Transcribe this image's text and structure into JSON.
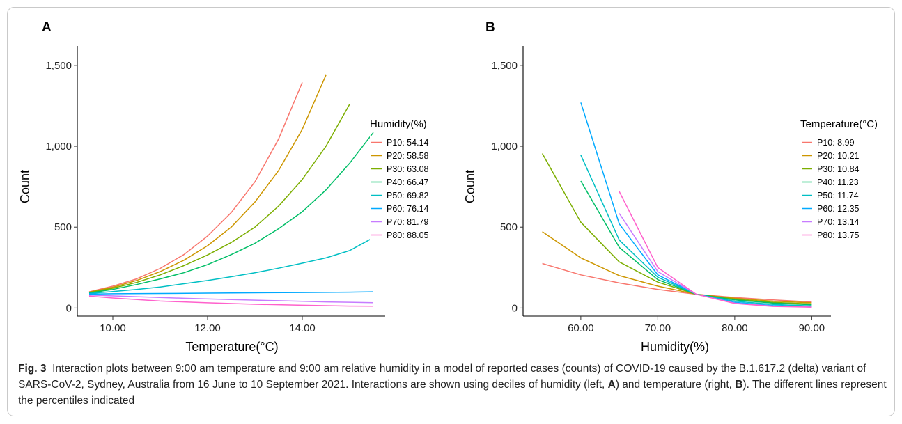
{
  "figure": {
    "caption_label": "Fig. 3",
    "caption_text": "Interaction plots between 9:00 am temperature and 9:00 am relative humidity in a model of reported cases (counts) of COVID-19 caused by the B.1.617.2 (delta) variant of SARS-CoV-2, Sydney, Australia from 16 June to 10 September 2021. Interactions are shown using deciles of humidity (left, ",
    "caption_ref_a": "A",
    "caption_mid": ") and temperature (right, ",
    "caption_ref_b": "B",
    "caption_end": "). The different lines represent the percentiles indicated"
  },
  "chart_data": [
    {
      "type": "line",
      "panel_label": "A",
      "xlabel": "Temperature(°C)",
      "ylabel": "Count",
      "xlim": [
        9.25,
        15.75
      ],
      "ylim": [
        -50,
        1620
      ],
      "xticks": [
        10,
        12,
        14
      ],
      "xtick_labels": [
        "10.00",
        "12.00",
        "14.00"
      ],
      "yticks": [
        0,
        500,
        1000,
        1500
      ],
      "ytick_labels": [
        "0",
        "500",
        "1,000",
        "1,500"
      ],
      "legend_title": "Humidity(%)",
      "legend_position": "right",
      "series": [
        {
          "name": "P10: 54.14",
          "color": "#F8766D",
          "x": [
            9.5,
            10.0,
            10.5,
            11.0,
            11.5,
            12.0,
            12.5,
            13.0,
            13.5,
            14.0
          ],
          "y": [
            100,
            135,
            180,
            245,
            330,
            445,
            590,
            780,
            1045,
            1395
          ]
        },
        {
          "name": "P20: 58.58",
          "color": "#CD9600",
          "x": [
            9.5,
            10.0,
            10.5,
            11.0,
            11.5,
            12.0,
            12.5,
            13.0,
            13.5,
            14.0,
            14.5
          ],
          "y": [
            98,
            128,
            170,
            225,
            295,
            385,
            500,
            655,
            850,
            1105,
            1440
          ]
        },
        {
          "name": "P30: 63.08",
          "color": "#7CAE00",
          "x": [
            9.5,
            10.0,
            10.5,
            11.0,
            11.5,
            12.0,
            12.5,
            13.0,
            13.5,
            14.0,
            14.5,
            15.0
          ],
          "y": [
            96,
            122,
            158,
            205,
            262,
            328,
            405,
            500,
            630,
            795,
            1000,
            1260
          ]
        },
        {
          "name": "P40: 66.47",
          "color": "#00BE67",
          "x": [
            9.5,
            10.0,
            10.5,
            11.0,
            11.5,
            12.0,
            12.5,
            13.0,
            13.5,
            14.0,
            14.5,
            15.0,
            15.5
          ],
          "y": [
            93,
            115,
            145,
            180,
            218,
            268,
            330,
            400,
            490,
            595,
            730,
            895,
            1085
          ]
        },
        {
          "name": "P50: 69.82",
          "color": "#00BFC4",
          "x": [
            9.5,
            10.0,
            10.5,
            11.0,
            11.5,
            12.0,
            12.5,
            13.0,
            13.5,
            14.0,
            14.5,
            15.0,
            15.5
          ],
          "y": [
            90,
            102,
            115,
            130,
            150,
            170,
            193,
            218,
            246,
            277,
            310,
            355,
            435
          ]
        },
        {
          "name": "P60: 76.14",
          "color": "#00A9FF",
          "x": [
            9.5,
            10.0,
            11.0,
            12.0,
            13.0,
            14.0,
            15.0,
            15.5
          ],
          "y": [
            86,
            88,
            90,
            92,
            94,
            96,
            98,
            100
          ]
        },
        {
          "name": "P70: 81.79",
          "color": "#C77CFF",
          "x": [
            9.5,
            10.5,
            11.5,
            12.5,
            13.5,
            14.5,
            15.5
          ],
          "y": [
            80,
            70,
            60,
            52,
            45,
            38,
            33
          ]
        },
        {
          "name": "P80: 88.05",
          "color": "#FF61CC",
          "x": [
            9.5,
            10.0,
            11.0,
            12.0,
            13.0,
            14.0,
            15.0,
            15.5
          ],
          "y": [
            74,
            62,
            43,
            32,
            23,
            17,
            12,
            11
          ]
        }
      ]
    },
    {
      "type": "line",
      "panel_label": "B",
      "xlabel": "Humidity(%)",
      "ylabel": "Count",
      "xlim": [
        52.5,
        92.5
      ],
      "ylim": [
        -50,
        1620
      ],
      "xticks": [
        60,
        70,
        80,
        90
      ],
      "xtick_labels": [
        "60.00",
        "70.00",
        "80.00",
        "90.00"
      ],
      "yticks": [
        0,
        500,
        1000,
        1500
      ],
      "ytick_labels": [
        "0",
        "500",
        "1,000",
        "1,500"
      ],
      "legend_title": "Temperature(°C)",
      "legend_position": "right",
      "series": [
        {
          "name": "P10: 8.99",
          "color": "#F8766D",
          "x": [
            55,
            60,
            65,
            70,
            75,
            80,
            85,
            90
          ],
          "y": [
            275,
            205,
            155,
            115,
            85,
            65,
            50,
            38
          ]
        },
        {
          "name": "P20: 10.21",
          "color": "#CD9600",
          "x": [
            55,
            60,
            65,
            70,
            75,
            80,
            85,
            90
          ],
          "y": [
            472,
            310,
            200,
            135,
            85,
            60,
            42,
            32
          ]
        },
        {
          "name": "P30: 10.84",
          "color": "#7CAE00",
          "x": [
            55,
            60,
            65,
            70,
            75,
            80,
            85,
            90
          ],
          "y": [
            955,
            530,
            285,
            160,
            85,
            55,
            35,
            25
          ]
        },
        {
          "name": "P40: 11.23",
          "color": "#00BE67",
          "x": [
            60,
            65,
            70,
            75,
            80,
            85,
            90
          ],
          "y": [
            785,
            375,
            175,
            85,
            50,
            30,
            20
          ]
        },
        {
          "name": "P50: 11.74",
          "color": "#00BFC4",
          "x": [
            60,
            65,
            70,
            75,
            80,
            85,
            90
          ],
          "y": [
            945,
            420,
            190,
            85,
            42,
            22,
            13
          ]
        },
        {
          "name": "P60: 12.35",
          "color": "#00A9FF",
          "x": [
            60,
            65,
            70,
            75,
            80,
            85,
            90
          ],
          "y": [
            1270,
            520,
            205,
            85,
            35,
            15,
            8
          ]
        },
        {
          "name": "P70: 13.14",
          "color": "#C77CFF",
          "x": [
            65,
            70,
            75,
            80,
            85,
            90
          ],
          "y": [
            585,
            225,
            85,
            30,
            12,
            6
          ]
        },
        {
          "name": "P80: 13.75",
          "color": "#FF61CC",
          "x": [
            65,
            70,
            75,
            80,
            85,
            90
          ],
          "y": [
            720,
            250,
            85,
            28,
            10,
            5
          ]
        }
      ]
    }
  ]
}
